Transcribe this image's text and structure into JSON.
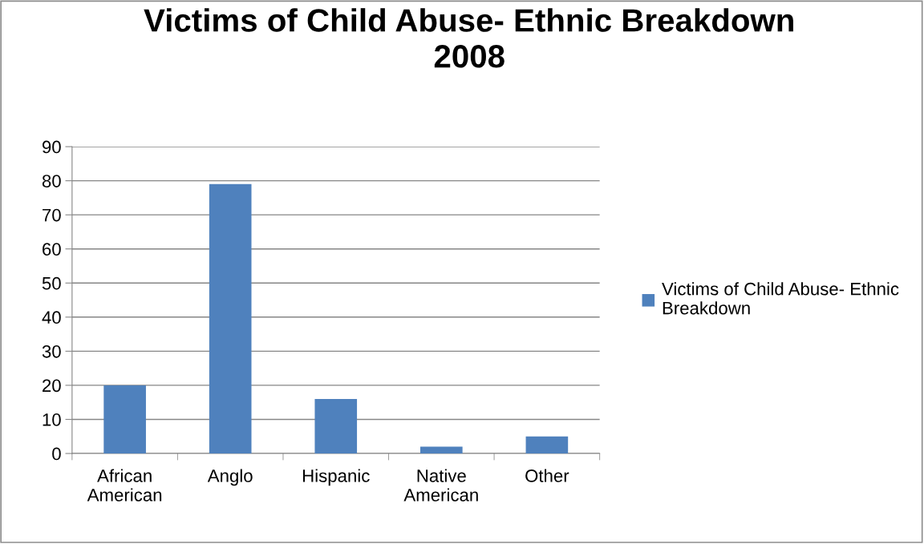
{
  "chart_data": {
    "type": "bar",
    "title": "Victims of Child Abuse- Ethnic Breakdown 2008",
    "categories": [
      "African American",
      "Anglo",
      "Hispanic",
      "Native American",
      "Other"
    ],
    "series": [
      {
        "name": "Victims of Child Abuse- Ethnic Breakdown",
        "color": "#4f81bd",
        "values": [
          20,
          79,
          16,
          2,
          5
        ]
      }
    ],
    "ylim": [
      0,
      90
    ],
    "yticks": [
      0,
      10,
      20,
      30,
      40,
      50,
      60,
      70,
      80,
      90
    ],
    "grid": "y",
    "legend": "right"
  }
}
